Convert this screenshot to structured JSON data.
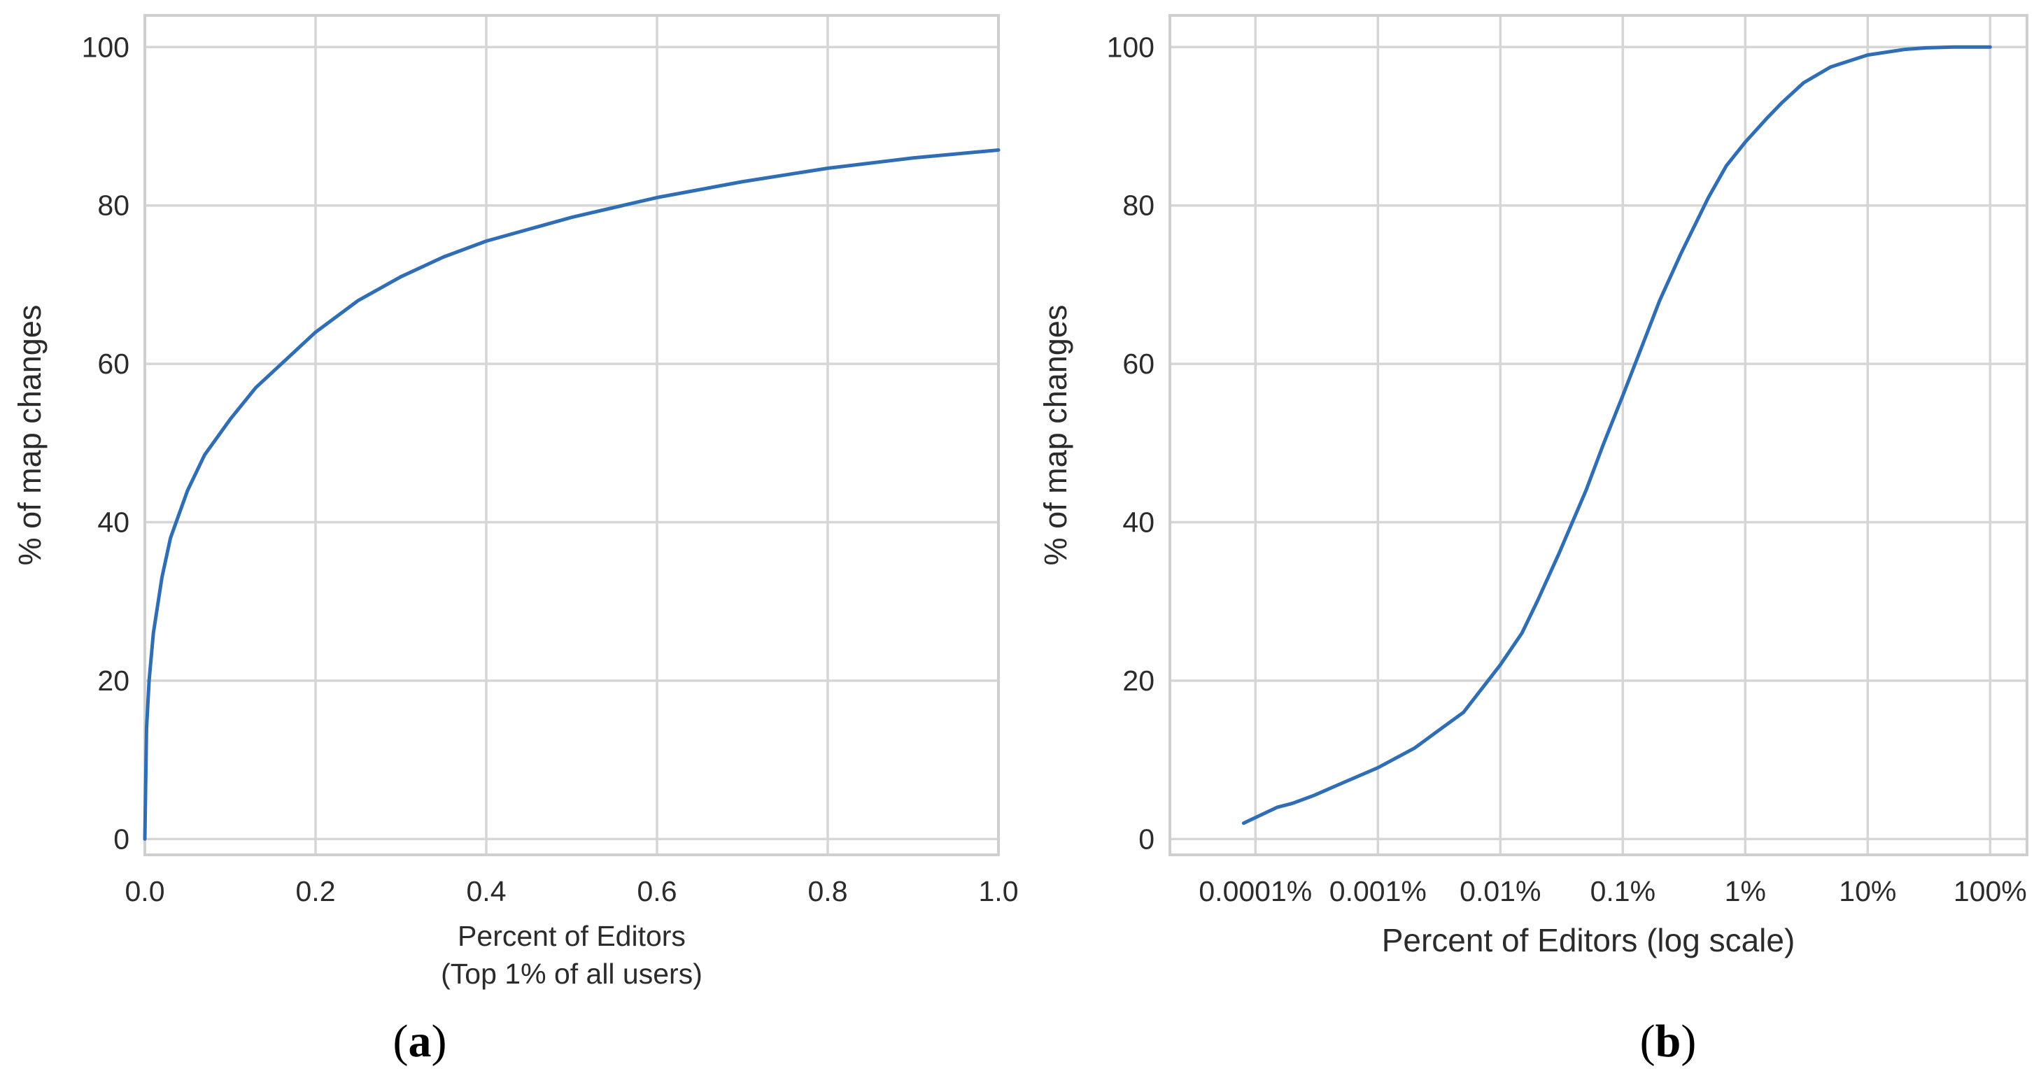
{
  "chart_data": [
    {
      "type": "line",
      "panel_label": "a",
      "xlabel_lines": [
        "Percent of Editors",
        "(Top 1% of all users)"
      ],
      "ylabel": "% of map changes",
      "xlim": [
        0.0,
        1.0
      ],
      "ylim": [
        -2,
        104
      ],
      "xticks": [
        0.0,
        0.2,
        0.4,
        0.6,
        0.8,
        1.0
      ],
      "xtick_labels": [
        "0.0",
        "0.2",
        "0.4",
        "0.6",
        "0.8",
        "1.0"
      ],
      "yticks": [
        0,
        20,
        40,
        60,
        80,
        100
      ],
      "ytick_labels": [
        "0",
        "20",
        "40",
        "60",
        "80",
        "100"
      ],
      "grid": true,
      "line_color": "#2f6db5",
      "series": [
        {
          "x": [
            0.0,
            0.002,
            0.005,
            0.01,
            0.02,
            0.03,
            0.05,
            0.07,
            0.1,
            0.13,
            0.15,
            0.2,
            0.25,
            0.3,
            0.35,
            0.4,
            0.5,
            0.6,
            0.7,
            0.8,
            0.9,
            1.0
          ],
          "y": [
            0,
            14,
            20,
            26,
            33,
            38,
            44,
            48.5,
            53,
            57,
            59,
            64,
            68,
            71,
            73.5,
            75.5,
            78.5,
            81,
            83,
            84.7,
            86,
            87
          ]
        }
      ]
    },
    {
      "type": "line",
      "panel_label": "b",
      "xlabel": "Percent of Editors (log scale)",
      "ylabel": "% of map changes",
      "xscale": "log",
      "xlim": [
        2e-05,
        200
      ],
      "ylim": [
        -2,
        104
      ],
      "xticks": [
        0.0001,
        0.001,
        0.01,
        0.1,
        1,
        10,
        100
      ],
      "xtick_labels": [
        "0.0001%",
        "0.001%",
        "0.01%",
        "0.1%",
        "1%",
        "10%",
        "100%"
      ],
      "yticks": [
        0,
        20,
        40,
        60,
        80,
        100
      ],
      "ytick_labels": [
        "0",
        "20",
        "40",
        "60",
        "80",
        "100"
      ],
      "grid": true,
      "line_color": "#2f6db5",
      "series": [
        {
          "x": [
            8e-05,
            0.00015,
            0.0002,
            0.0003,
            0.0005,
            0.001,
            0.002,
            0.003,
            0.005,
            0.01,
            0.015,
            0.02,
            0.03,
            0.05,
            0.07,
            0.1,
            0.15,
            0.2,
            0.3,
            0.5,
            0.7,
            1,
            1.5,
            2,
            3,
            5,
            10,
            20,
            30,
            50,
            100
          ],
          "y": [
            2,
            4,
            4.5,
            5.5,
            7,
            9,
            11.5,
            13.5,
            16,
            22,
            26,
            30,
            36,
            44,
            50,
            56,
            63,
            68,
            74,
            81,
            85,
            88,
            91,
            93,
            95.5,
            97.5,
            99,
            99.7,
            99.9,
            100,
            100
          ]
        }
      ]
    }
  ]
}
